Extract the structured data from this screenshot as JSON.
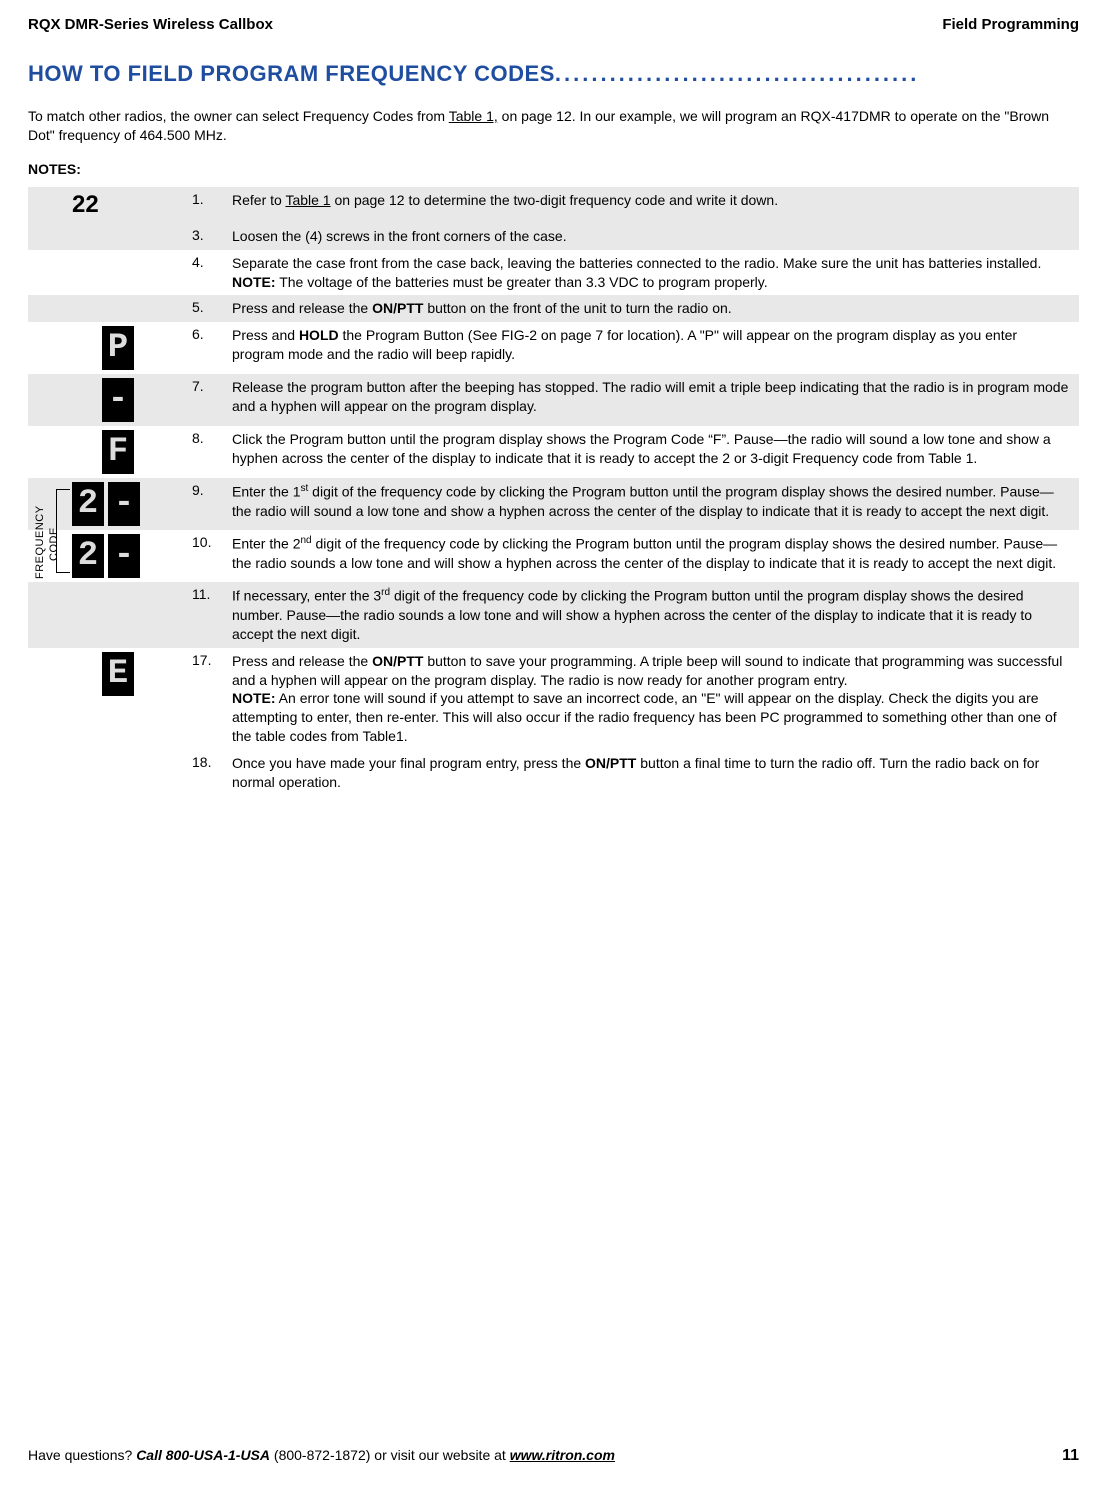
{
  "header": {
    "left": "RQX DMR-Series Wireless Callbox",
    "right": "Field Programming"
  },
  "title": {
    "main": "HOW TO FIELD PROGRAM FREQUENCY CODES",
    "dots": "........................................"
  },
  "intro": {
    "pre": "To match other radios, the owner can select Frequency Codes from ",
    "link": "Table 1,",
    "post": " on page 12. In our example, we will program an RQX-417DMR to operate on the \"Brown Dot\" frequency of 464.500 MHz."
  },
  "notes_label": "NOTES:",
  "big_num": "22",
  "steps": [
    {
      "n": "1.",
      "shade": true,
      "seg": null,
      "html": "Refer to <a class='link' data-interactable='true' data-name='table1-link'>Table 1</a> on page 12 to determine the two-digit frequency code and write it down."
    },
    {
      "n": "3.",
      "shade": true,
      "seg": null,
      "text": "Loosen the (4) screws in the front corners of the case."
    },
    {
      "n": "4.",
      "shade": false,
      "seg": null,
      "html": "Separate the case front from the case back, leaving the batteries connected to the radio.  Make sure the unit has batteries installed.<br><b>NOTE:</b>  The voltage of the batteries must be greater than 3.3 VDC to program properly."
    },
    {
      "n": "5.",
      "shade": true,
      "seg": null,
      "html": "Press and release the <b>ON/PTT</b> button on the front of the unit to turn the radio on."
    },
    {
      "n": "6.",
      "shade": false,
      "seg": "P",
      "html": "Press and <b>HOLD</b> the Program Button (See FIG-2 on page 7 for location). A \"P\" will appear on the program display as you enter program mode and the radio will beep rapidly."
    },
    {
      "n": "7.",
      "shade": true,
      "seg": "-",
      "text": "Release the program button after the beeping has stopped. The radio will emit a triple beep indicating that the radio is in program mode and a hyphen will appear on the program display."
    },
    {
      "n": "8.",
      "shade": false,
      "seg": "F",
      "text": "Click the Program button until the program display shows the Program Code “F”.  Pause—the radio will sound a low tone and show a hyphen across the center of the display to indicate that it is ready to accept the 2 or 3-digit Frequency code from Table 1."
    },
    {
      "n": "9.",
      "shade": true,
      "seg": "2-",
      "html": "Enter the 1<sup>st</sup> digit of the frequency code by clicking the Program button until the program display shows the desired number. Pause—the radio will sound a low tone and show a hyphen across the center of the display to indicate that it is ready to accept the next digit."
    },
    {
      "n": "10.",
      "shade": false,
      "seg": "2-",
      "html": "Enter the 2<sup>nd</sup> digit of the frequency code by clicking the Program button until the program display shows the desired number. Pause—the radio sounds a low tone and will show a hyphen across the center of the display to indicate that it is ready to accept the next digit."
    },
    {
      "n": "11.",
      "shade": true,
      "seg": null,
      "html": "If necessary, enter the 3<sup>rd</sup> digit of the frequency code by clicking the Program button until the program display shows the desired number. Pause—the radio sounds a low tone and will show a hyphen across the center of the display to indicate that it is ready to accept the next digit."
    },
    {
      "n": "17.",
      "shade": false,
      "seg": null,
      "segAfter": "E",
      "html": "Press and release the <b>ON/PTT</b> button to save your programming. A triple beep will sound to indicate that programming was successful and a hyphen will appear on the program display.  The radio is now ready for another program entry.<br><b>NOTE:</b>  An error tone will sound if you attempt to save an incorrect code, an \"E\" will appear on the display. Check the digits you are attempting to enter, then re-enter.  This will also occur if the radio frequency has been PC programmed to something other than one of the table codes from Table1."
    },
    {
      "n": "18.",
      "shade": false,
      "seg": null,
      "html": "Once you have made your final program entry, press the <b>ON/PTT</b> button a final time to turn the radio off. Turn the radio back on for normal operation."
    }
  ],
  "freq_label": "FREQUENCY",
  "code_label": "CODE",
  "footer": {
    "q": "Have questions?  ",
    "call": "Call 800-USA-1-USA",
    "num": " (800-872-1872) or visit our website at ",
    "url": "www.ritron.com",
    "page": "11"
  }
}
